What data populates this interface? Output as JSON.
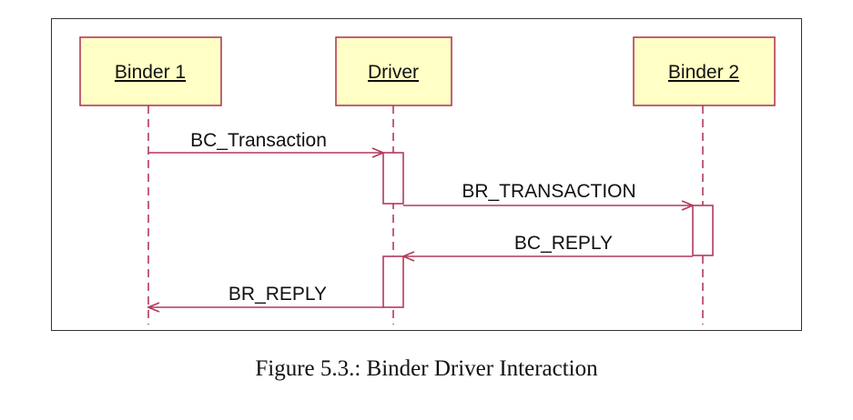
{
  "diagram": {
    "lifelines": [
      {
        "id": "binder1",
        "label": "Binder 1"
      },
      {
        "id": "driver",
        "label": "Driver"
      },
      {
        "id": "binder2",
        "label": "Binder 2"
      }
    ],
    "messages": [
      {
        "id": "m1",
        "label": "BC_Transaction",
        "from": "Binder 1",
        "to": "Driver"
      },
      {
        "id": "m2",
        "label": "BR_TRANSACTION",
        "from": "Driver",
        "to": "Binder 2"
      },
      {
        "id": "m3",
        "label": "BC_REPLY",
        "from": "Binder 2",
        "to": "Driver"
      },
      {
        "id": "m4",
        "label": "BR_REPLY",
        "from": "Driver",
        "to": "Binder 1"
      }
    ],
    "colors": {
      "accent": "#b23a5b",
      "box_fill": "#ffffc6"
    }
  },
  "caption": "Figure 5.3.: Binder Driver Interaction"
}
